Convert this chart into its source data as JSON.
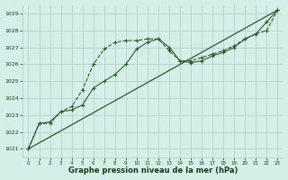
{
  "title": "Graphe pression niveau de la mer (hPa)",
  "bg_color": "#d6eee8",
  "grid_color": "#b0ccc4",
  "line_color": "#2d5a2d",
  "marker_color": "#2d5a2d",
  "text_color": "#1a3a1a",
  "ylim": [
    1020.5,
    1029.5
  ],
  "xlim": [
    -0.5,
    23.5
  ],
  "yticks": [
    1021,
    1022,
    1023,
    1024,
    1025,
    1026,
    1027,
    1028,
    1029
  ],
  "xticks": [
    0,
    1,
    2,
    3,
    4,
    5,
    6,
    7,
    8,
    9,
    10,
    11,
    12,
    13,
    14,
    15,
    16,
    17,
    18,
    19,
    20,
    21,
    22,
    23
  ],
  "series1_x": [
    0,
    23
  ],
  "series1_y": [
    1021.0,
    1029.2
  ],
  "series2_x": [
    0,
    1,
    2,
    3,
    4,
    5,
    6,
    7,
    8,
    9,
    10,
    11,
    12,
    13,
    14,
    15,
    16,
    17,
    18,
    19,
    20,
    21,
    22,
    23
  ],
  "series2_y": [
    1021.0,
    1022.5,
    1022.6,
    1023.2,
    1023.3,
    1023.6,
    1024.6,
    1025.0,
    1025.4,
    1026.0,
    1026.9,
    1027.3,
    1027.5,
    1027.0,
    1026.2,
    1026.1,
    1026.2,
    1026.5,
    1026.7,
    1027.0,
    1027.5,
    1027.8,
    1028.5,
    1029.2
  ],
  "series3_x": [
    0,
    1,
    2,
    3,
    4,
    5,
    6,
    7,
    8,
    9,
    10,
    11,
    12,
    13,
    14,
    15,
    16,
    17,
    18,
    19,
    20,
    21,
    22,
    23
  ],
  "series3_y": [
    1021.0,
    1022.5,
    1022.5,
    1023.2,
    1023.5,
    1024.5,
    1026.0,
    1026.9,
    1027.3,
    1027.4,
    1027.4,
    1027.5,
    1027.5,
    1026.8,
    1026.2,
    1026.2,
    1026.4,
    1026.6,
    1026.8,
    1027.1,
    1027.5,
    1027.8,
    1028.0,
    1029.2
  ]
}
